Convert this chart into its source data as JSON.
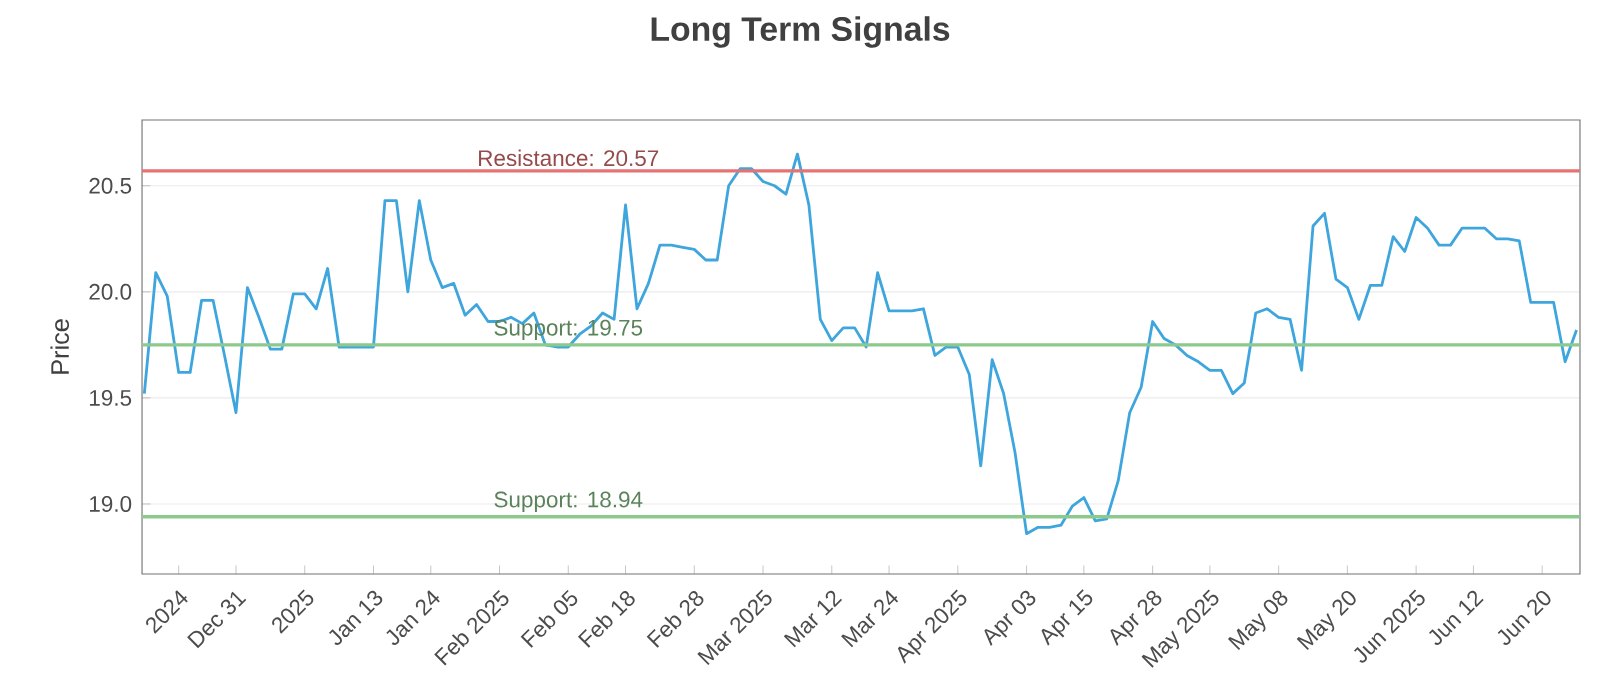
{
  "chart_data": {
    "type": "line",
    "title": "Long Term Signals",
    "ylabel": "Price",
    "categories": [
      null,
      null,
      null,
      "2024",
      null,
      null,
      null,
      null,
      "Dec 31",
      null,
      null,
      null,
      null,
      null,
      "2025",
      null,
      null,
      null,
      null,
      null,
      "Jan 13",
      null,
      null,
      null,
      null,
      "Jan 24",
      null,
      null,
      null,
      null,
      null,
      "Feb 2025",
      null,
      null,
      null,
      null,
      null,
      "Feb 05",
      null,
      null,
      null,
      null,
      "Feb 18",
      null,
      null,
      null,
      null,
      null,
      "Feb 28",
      null,
      null,
      null,
      null,
      null,
      "Mar 2025",
      null,
      null,
      null,
      null,
      null,
      "Mar 12",
      null,
      null,
      null,
      null,
      "Mar 24",
      null,
      null,
      null,
      null,
      null,
      "Apr 2025",
      null,
      null,
      null,
      null,
      null,
      "Apr 03",
      null,
      null,
      null,
      null,
      "Apr 15",
      null,
      null,
      null,
      null,
      null,
      "Apr 28",
      null,
      null,
      null,
      null,
      "May 2025",
      null,
      null,
      null,
      null,
      null,
      "May 08",
      null,
      null,
      null,
      null,
      null,
      "May 20",
      null,
      null,
      null,
      null,
      null,
      "Jun 2025",
      null,
      null,
      null,
      null,
      "Jun 12",
      null,
      null,
      null,
      null,
      null,
      "Jun 20",
      null,
      null,
      null
    ],
    "series": [
      {
        "color": "#3ea6dd",
        "values": [
          19.52,
          20.09,
          19.98,
          19.62,
          19.62,
          19.96,
          19.96,
          19.7,
          19.43,
          20.02,
          19.88,
          19.73,
          19.73,
          19.99,
          19.99,
          19.92,
          20.11,
          19.74,
          19.74,
          19.74,
          19.74,
          20.43,
          20.43,
          20.0,
          20.43,
          20.15,
          20.02,
          20.04,
          19.89,
          19.94,
          19.86,
          19.86,
          19.88,
          19.85,
          19.9,
          19.75,
          19.74,
          19.74,
          19.8,
          19.84,
          19.9,
          19.87,
          20.41,
          19.92,
          20.04,
          20.22,
          20.22,
          20.21,
          20.2,
          20.15,
          20.15,
          20.5,
          20.58,
          20.58,
          20.52,
          20.5,
          20.46,
          20.65,
          20.41,
          19.87,
          19.77,
          19.83,
          19.83,
          19.74,
          20.09,
          19.91,
          19.91,
          19.91,
          19.92,
          19.7,
          19.74,
          19.74,
          19.61,
          19.18,
          19.68,
          19.52,
          19.24,
          18.86,
          18.89,
          18.89,
          18.9,
          18.99,
          19.03,
          18.92,
          18.93,
          19.11,
          19.43,
          19.55,
          19.86,
          19.78,
          19.75,
          19.7,
          19.67,
          19.63,
          19.63,
          19.52,
          19.57,
          19.9,
          19.92,
          19.88,
          19.87,
          19.63,
          20.31,
          20.37,
          20.06,
          20.02,
          19.87,
          20.03,
          20.03,
          20.26,
          20.19,
          20.35,
          20.3,
          20.22,
          20.22,
          20.3,
          20.3,
          20.3,
          20.25,
          20.25,
          20.24,
          19.95,
          19.95,
          19.95,
          19.67,
          19.82
        ]
      }
    ],
    "ylim": [
      18.67,
      20.81
    ],
    "yticks": [
      {
        "value": 19.0,
        "label": "19.0"
      },
      {
        "value": 19.5,
        "label": "19.5"
      },
      {
        "value": 20.0,
        "label": "20.0"
      },
      {
        "value": 20.5,
        "label": "20.5"
      }
    ],
    "grid": "y",
    "ref_lines": [
      {
        "axis": "y",
        "value": 20.57,
        "label": "Resistance: 20.57",
        "color": "#e57373"
      },
      {
        "axis": "y",
        "value": 19.75,
        "label": "Support: 19.75",
        "color": "#8cc98c"
      },
      {
        "axis": "y",
        "value": 18.94,
        "label": "Support: 18.94",
        "color": "#8cc98c"
      }
    ]
  }
}
